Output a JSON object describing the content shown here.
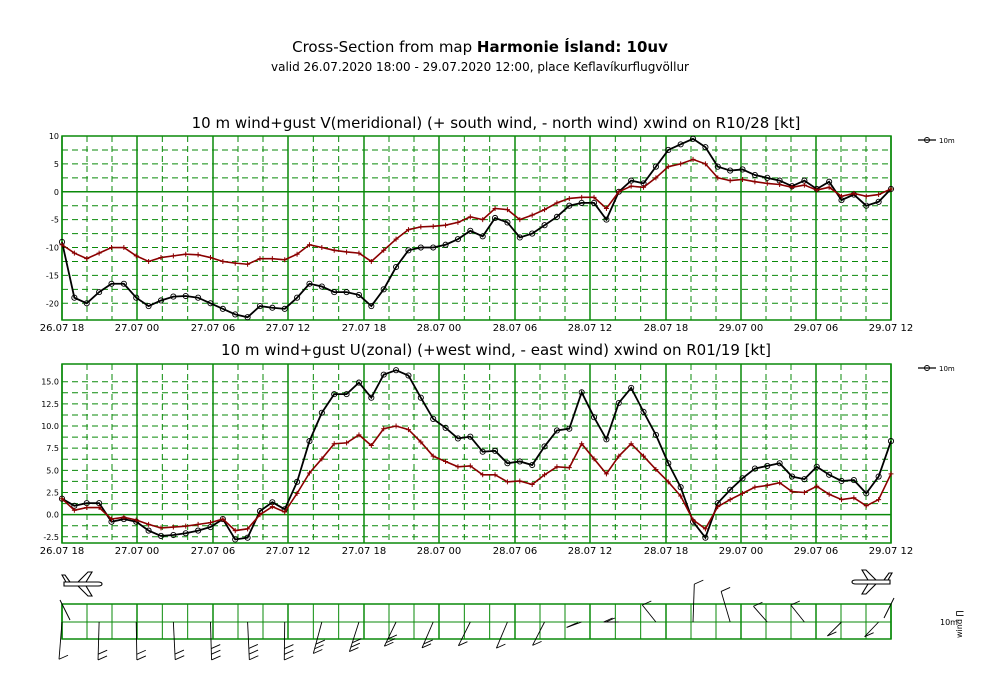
{
  "header": {
    "title_prefix": "Cross-Section from map ",
    "title_bold": "Harmonie Ísland: 10uv",
    "subtitle": "valid 26.07.2020 18:00 - 29.07.2020 12:00, place Keflavíkurflugvöllur"
  },
  "colors": {
    "grid": "#0a8a0a",
    "wind_line": "#000000",
    "gust_line": "#8b0000"
  },
  "x_tick_labels": [
    "26.07 18",
    "27.07 00",
    "27.07 06",
    "27.07 12",
    "27.07 18",
    "28.07 00",
    "28.07 06",
    "28.07 12",
    "28.07 18",
    "29.07 00",
    "29.07 06",
    "29.07 12"
  ],
  "bottom_panel": {
    "label_level": "10m",
    "label_var": "wind ∏",
    "icons": [
      "airplane-icon",
      "airplane-icon"
    ]
  },
  "chart_data": [
    {
      "type": "line",
      "title": "10 m wind+gust V(meridional) (+ south wind, - north wind) xwind on R10/28 [kt]",
      "x_tick_labels": [
        "26.07 18",
        "27.07 00",
        "27.07 06",
        "27.07 12",
        "27.07 18",
        "28.07 00",
        "28.07 06",
        "28.07 12",
        "28.07 18",
        "29.07 00",
        "29.07 06",
        "29.07 12"
      ],
      "y_ticks": [
        "10",
        "5",
        "0",
        "-5",
        "-10",
        "-15",
        "-20"
      ],
      "ylim": [
        -23,
        10
      ],
      "legend": {
        "entry": "10m",
        "placement": "top-right"
      },
      "grid": true,
      "series": [
        {
          "name": "10m",
          "values": [
            -9,
            -19,
            -20,
            -18,
            -16.5,
            -16.5,
            -19,
            -20.5,
            -19.5,
            -18.8,
            -18.7,
            -19,
            -20,
            -21,
            -22,
            -22.5,
            -20.5,
            -20.8,
            -21,
            -19,
            -16.5,
            -17,
            -18,
            -18,
            -18.5,
            -20.5,
            -17.5,
            -13.5,
            -10.5,
            -10,
            -10,
            -9.5,
            -8.5,
            -7,
            -8,
            -4.7,
            -5.5,
            -8.2,
            -7.5,
            -6,
            -4.5,
            -2.5,
            -2,
            -2,
            -5,
            0,
            2,
            1.5,
            4.5,
            7.5,
            8.5,
            9.5,
            8,
            4.5,
            3.8,
            4,
            3,
            2.5,
            2,
            1,
            2,
            0.5,
            1.8,
            -1.5,
            -0.5,
            -2.5,
            -1.8,
            0.5
          ]
        },
        {
          "values": [
            -9.5,
            -11,
            -12,
            -11,
            -10,
            -10,
            -11.5,
            -12.5,
            -11.8,
            -11.5,
            -11.2,
            -11.3,
            -11.8,
            -12.5,
            -12.8,
            -13,
            -12,
            -12,
            -12.2,
            -11.2,
            -9.5,
            -10,
            -10.5,
            -10.8,
            -11,
            -12.5,
            -10.5,
            -8.5,
            -6.8,
            -6.3,
            -6.2,
            -6,
            -5.5,
            -4.5,
            -5,
            -3,
            -3.2,
            -5,
            -4.2,
            -3.2,
            -2,
            -1.2,
            -1,
            -1,
            -3,
            0,
            1,
            0.8,
            2.5,
            4.5,
            5,
            5.8,
            5,
            2.5,
            2,
            2.2,
            1.8,
            1.5,
            1.3,
            0.8,
            1.2,
            0.3,
            0.8,
            -0.8,
            -0.3,
            -0.8,
            -0.5,
            0.5
          ]
        }
      ]
    },
    {
      "type": "line",
      "title": "10 m wind+gust U(zonal) (+west wind, - east wind) xwind on R01/19 [kt]",
      "x_tick_labels": [
        "26.07 18",
        "27.07 00",
        "27.07 06",
        "27.07 12",
        "27.07 18",
        "28.07 00",
        "28.07 06",
        "28.07 12",
        "28.07 18",
        "29.07 00",
        "29.07 06",
        "29.07 12"
      ],
      "y_ticks": [
        "15.0",
        "12.5",
        "10.0",
        "7.5",
        "5.0",
        "2.5",
        "0.0",
        "-2.5"
      ],
      "ylim": [
        -3.2,
        17
      ],
      "legend": {
        "entry": "10m",
        "placement": "top-right"
      },
      "grid": true,
      "series": [
        {
          "name": "10m",
          "values": [
            1.8,
            1,
            1.3,
            1.3,
            -0.8,
            -0.5,
            -0.8,
            -1.8,
            -2.4,
            -2.3,
            -2.1,
            -1.8,
            -1.4,
            -0.5,
            -2.8,
            -2.6,
            0.4,
            1.4,
            0.6,
            3.7,
            8.3,
            11.5,
            13.6,
            13.6,
            14.9,
            13.2,
            15.8,
            16.3,
            15.7,
            13.2,
            10.8,
            9.8,
            8.6,
            8.8,
            7.1,
            7.2,
            5.8,
            6,
            5.6,
            7.7,
            9.5,
            9.7,
            13.8,
            11,
            8.5,
            12.6,
            14.3,
            11.6,
            9,
            5.8,
            3.1,
            -0.8,
            -2.6,
            1.3,
            2.8,
            4.1,
            5.2,
            5.5,
            5.8,
            4.3,
            4,
            5.4,
            4.5,
            3.8,
            3.9,
            2.4,
            4.3,
            8.3
          ]
        },
        {
          "values": [
            1.8,
            0.5,
            0.8,
            0.8,
            -0.5,
            -0.3,
            -0.6,
            -1.1,
            -1.5,
            -1.4,
            -1.3,
            -1.1,
            -0.9,
            -0.5,
            -1.8,
            -1.6,
            0,
            0.9,
            0.3,
            2.4,
            4.7,
            6.3,
            8,
            8.1,
            9,
            7.8,
            9.7,
            10,
            9.6,
            8.2,
            6.6,
            6,
            5.4,
            5.5,
            4.5,
            4.5,
            3.7,
            3.8,
            3.4,
            4.5,
            5.4,
            5.3,
            8,
            6.3,
            4.6,
            6.6,
            8,
            6.6,
            5.1,
            3.7,
            2.1,
            -0.6,
            -1.6,
            0.9,
            1.7,
            2.4,
            3.1,
            3.3,
            3.6,
            2.6,
            2.5,
            3.2,
            2.3,
            1.7,
            1.9,
            1,
            1.7,
            4.6
          ]
        }
      ]
    }
  ]
}
